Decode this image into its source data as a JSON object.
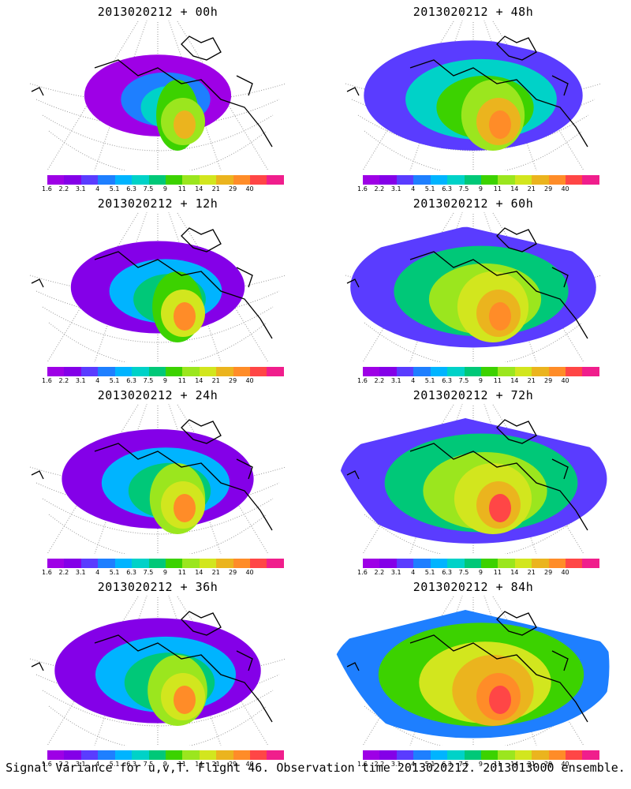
{
  "panels": [
    {
      "title": "2013020212 + 00h",
      "intensity": 0.15
    },
    {
      "title": "2013020212 + 48h",
      "intensity": 0.55
    },
    {
      "title": "2013020212 + 12h",
      "intensity": 0.3
    },
    {
      "title": "2013020212 + 60h",
      "intensity": 0.7
    },
    {
      "title": "2013020212 + 24h",
      "intensity": 0.4
    },
    {
      "title": "2013020212 + 72h",
      "intensity": 0.82
    },
    {
      "title": "2013020212 + 36h",
      "intensity": 0.48
    },
    {
      "title": "2013020212 + 84h",
      "intensity": 0.9
    }
  ],
  "colorbar": {
    "labels": [
      "1.6",
      "2.2",
      "3.1",
      "4",
      "5.1",
      "6.3",
      "7.5",
      "9",
      "11",
      "14",
      "21",
      "29",
      "40"
    ],
    "colors": [
      "#9e00e6",
      "#8400e8",
      "#5a3cff",
      "#1e7fff",
      "#00b4ff",
      "#00d2c8",
      "#00c878",
      "#3cd200",
      "#9be61e",
      "#d2e61e",
      "#ebb41e",
      "#ff8c28",
      "#ff4646",
      "#f01e8c"
    ]
  },
  "caption": "Signal Variance for u,v,T. Flight 46. Observation time 2013020212. 2013013000 ensemble."
}
